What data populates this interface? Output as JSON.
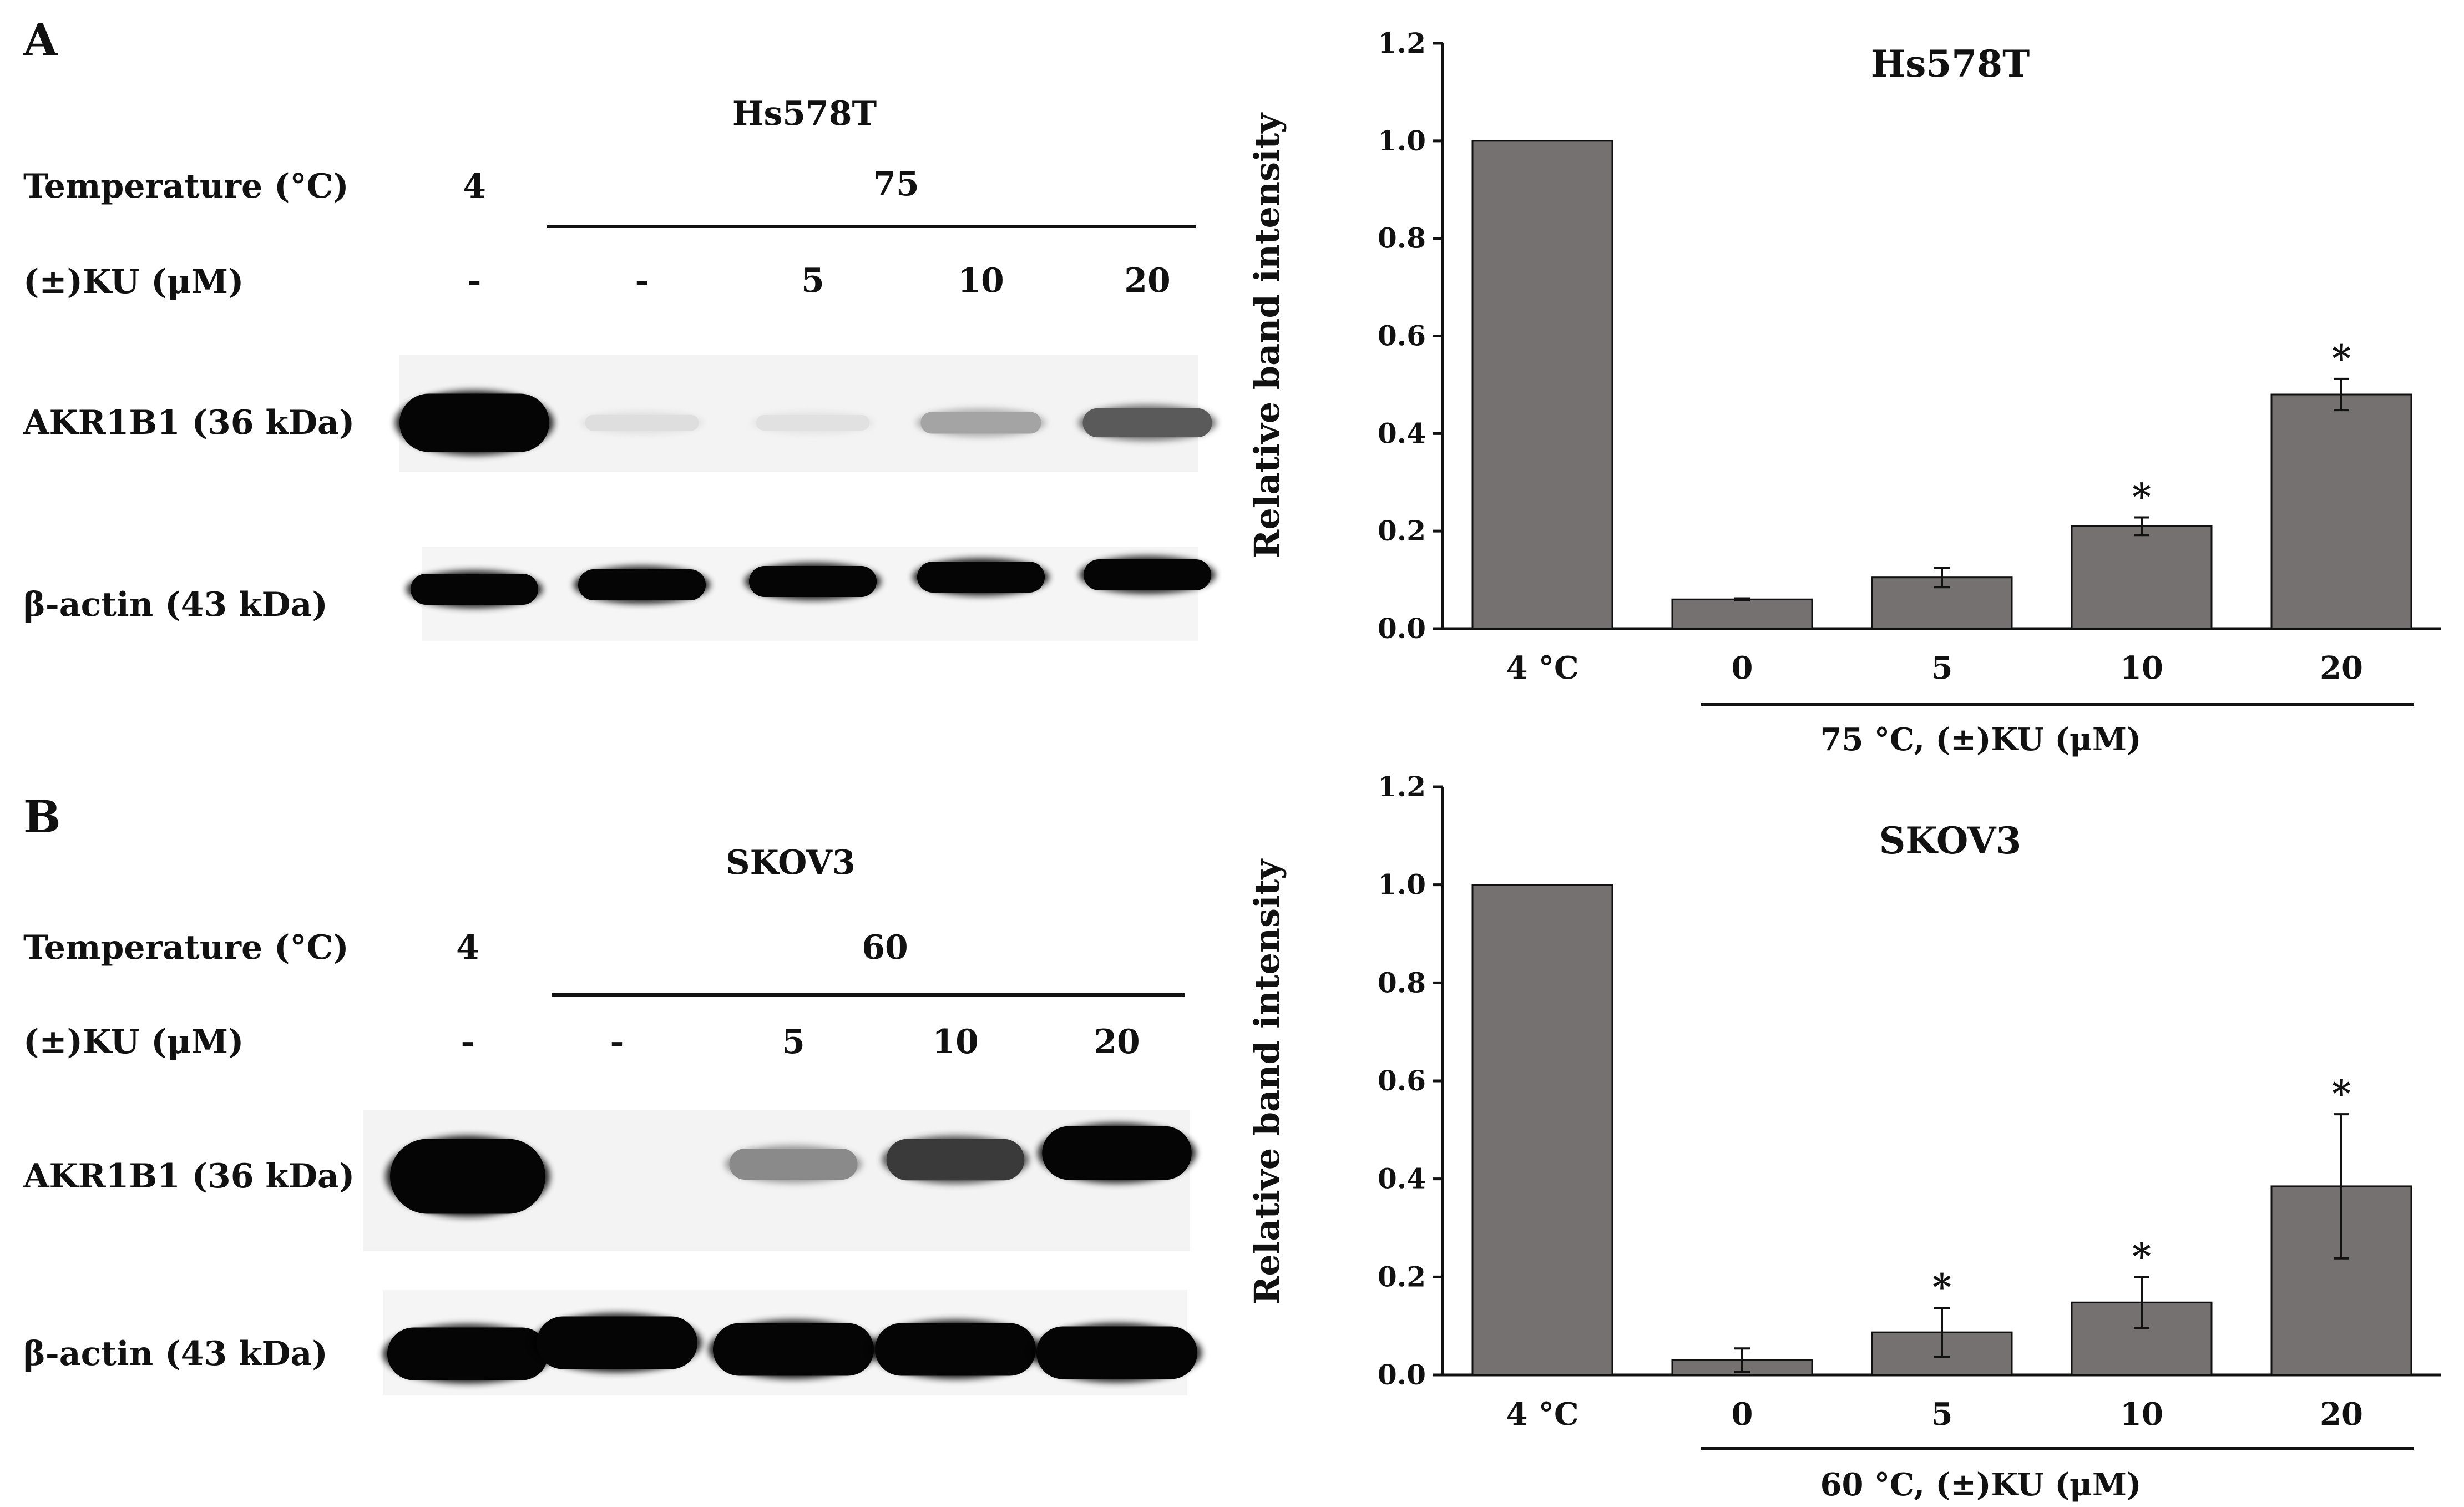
{
  "panels": [
    {
      "letter": "A",
      "blot": {
        "cell_line": "Hs578T",
        "temperature_label": "Temperature (°C)",
        "temperature_values": [
          "4",
          "75"
        ],
        "ku_label": "(±)KU (μM)",
        "ku_values": [
          "-",
          "-",
          "5",
          "10",
          "20"
        ],
        "target_label": "AKR1B1 (36 kDa)",
        "loading_label": "β-actin (43 kDa)",
        "target_band_strength": [
          1.0,
          0.04,
          0.03,
          0.22,
          0.45
        ],
        "loading_band_strength": [
          1.0,
          0.9,
          0.95,
          0.95,
          0.95
        ]
      },
      "chart_data": {
        "type": "bar",
        "title": "Hs578T",
        "ylabel": "Relative band intensity",
        "ylim": [
          0,
          1.2
        ],
        "yticks": [
          "0.0",
          "0.2",
          "0.4",
          "0.6",
          "0.8",
          "1.0",
          "1.2"
        ],
        "categories": [
          "4 °C",
          "0",
          "5",
          "10",
          "20"
        ],
        "values": [
          1.0,
          0.06,
          0.105,
          0.21,
          0.48
        ],
        "errors": [
          0,
          0.002,
          0.02,
          0.018,
          0.032
        ],
        "significant": [
          false,
          false,
          false,
          true,
          true
        ],
        "significance_marker": "*",
        "group_label": "75 °C, (±)KU (μM)",
        "bar_color": "#767171",
        "grid": false,
        "legend": "none"
      }
    },
    {
      "letter": "B",
      "blot": {
        "cell_line": "SKOV3",
        "temperature_label": "Temperature (°C)",
        "temperature_values": [
          "4",
          "60"
        ],
        "ku_label": "(±)KU (μM)",
        "ku_values": [
          "-",
          "-",
          "5",
          "10",
          "20"
        ],
        "target_label": "AKR1B1 (36 kDa)",
        "loading_label": "β-actin (43 kDa)",
        "target_band_strength": [
          1.0,
          0.0,
          0.3,
          0.55,
          0.85
        ],
        "loading_band_strength": [
          1.0,
          1.0,
          1.0,
          1.0,
          1.0
        ]
      },
      "chart_data": {
        "type": "bar",
        "title": "SKOV3",
        "ylabel": "Relative band intensity",
        "ylim": [
          0,
          1.2
        ],
        "yticks": [
          "0.0",
          "0.2",
          "0.4",
          "0.6",
          "0.8",
          "1.0",
          "1.2"
        ],
        "categories": [
          "4 °C",
          "0",
          "5",
          "10",
          "20"
        ],
        "values": [
          1.0,
          0.03,
          0.087,
          0.148,
          0.385
        ],
        "errors": [
          0,
          0.024,
          0.05,
          0.052,
          0.147
        ],
        "significant": [
          false,
          false,
          true,
          true,
          true
        ],
        "significance_marker": "*",
        "group_label": "60 °C, (±)KU (μM)",
        "bar_color": "#767171",
        "grid": false,
        "legend": "none"
      }
    }
  ]
}
